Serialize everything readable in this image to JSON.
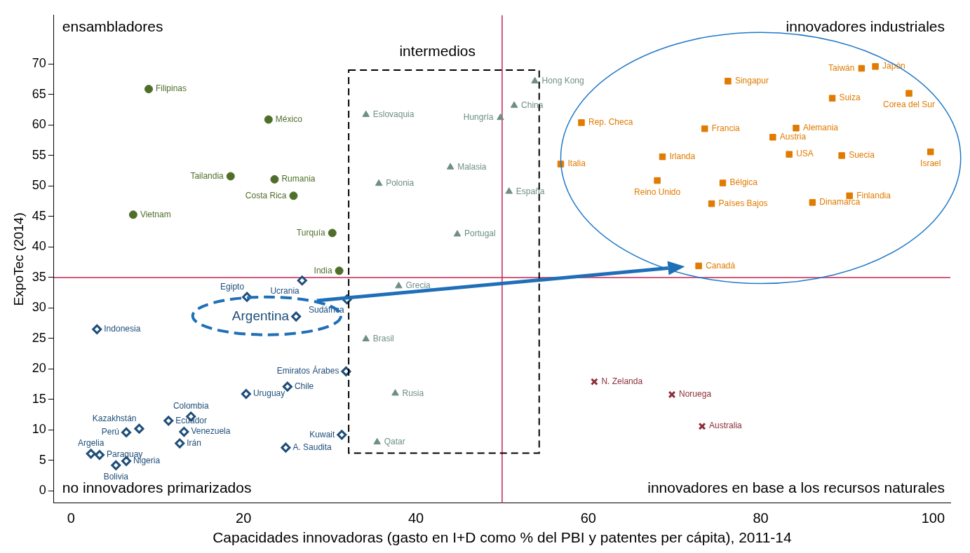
{
  "chart_data": {
    "type": "scatter",
    "xlabel": "Capacidades innovadoras (gasto en I+D como % del PBI y patentes per cápita), 2011-14",
    "ylabel": "ExpoTec (2014)",
    "xlim": [
      -2,
      102
    ],
    "xticks": [
      0,
      20,
      40,
      60,
      80,
      100
    ],
    "ylim": [
      -2,
      78
    ],
    "yticks": [
      0,
      5,
      10,
      15,
      20,
      25,
      30,
      35,
      40,
      45,
      50,
      55,
      60,
      65,
      70
    ],
    "grid": false,
    "legend": false,
    "tick_labels": "xy",
    "series": [
      {
        "color": "#4f6e2a",
        "marker": "circle",
        "x": [
          9.0,
          22.9,
          18.5,
          23.6,
          25.8,
          7.2,
          30.3,
          31.1
        ],
        "values": [
          65.9,
          60.9,
          51.6,
          51.1,
          48.4,
          45.3,
          42.3,
          36.1
        ],
        "value_labels": [
          "Filipinas",
          "México",
          "Tailandia",
          "Rumania",
          "Costa Rica",
          "Vietnam",
          "Turquía",
          "India"
        ]
      },
      {
        "color": "#1f4e79",
        "marker": "diamond",
        "x": [
          26.8,
          20.4,
          32.0,
          26.1,
          3.0,
          31.9,
          25.1,
          20.3,
          13.9,
          11.3,
          7.9,
          6.4,
          13.1,
          12.6,
          31.4,
          24.9,
          2.3,
          3.3,
          6.4,
          5.2
        ],
        "values": [
          34.5,
          31.8,
          31.4,
          28.6,
          26.5,
          19.6,
          17.1,
          15.9,
          12.2,
          11.5,
          10.2,
          9.6,
          9.7,
          7.8,
          9.2,
          7.1,
          6.1,
          5.9,
          4.9,
          4.2
        ],
        "value_labels": [
          "Ucrania",
          "Egipto",
          "Sudáfrica",
          "Argentina",
          "Indonesia",
          "Emiratos Árabes",
          "Chile",
          "Uruguay",
          "Colombia",
          "Ecuador",
          "Kazakhstán",
          "Perú",
          "Venezuela",
          "Irán",
          "Kuwait",
          "A. Saudita",
          "Argelia",
          "Paraguay",
          "Nigeria",
          "Bolivia"
        ]
      },
      {
        "color": "#6f8f86",
        "marker": "triangle",
        "x": [
          53.8,
          51.4,
          49.8,
          34.2,
          44.0,
          35.7,
          50.8,
          44.8,
          38.0,
          34.2,
          37.6,
          35.5
        ],
        "values": [
          67.2,
          63.2,
          61.2,
          61.7,
          53.1,
          50.4,
          49.1,
          42.1,
          33.6,
          24.9,
          16.0,
          8.0
        ],
        "value_labels": [
          "Hong Kong",
          "China",
          "Hungría",
          "Eslovaquia",
          "Malasia",
          "Polonia",
          "España",
          "Portugal",
          "Grecia",
          "Brasil",
          "Rusia",
          "Qatar"
        ]
      },
      {
        "color": "#e07b00",
        "marker": "square",
        "x": [
          91.7,
          93.3,
          76.2,
          88.3,
          97.2,
          59.2,
          73.5,
          84.1,
          81.4,
          68.6,
          83.3,
          89.4,
          99.7,
          56.8,
          68.0,
          75.6,
          90.3,
          74.3,
          86.0,
          72.8
        ],
        "values": [
          69.3,
          69.6,
          67.2,
          64.4,
          65.2,
          60.4,
          59.4,
          59.5,
          58.0,
          54.8,
          55.2,
          55.0,
          55.6,
          53.6,
          50.9,
          50.5,
          48.4,
          47.1,
          47.3,
          36.9
        ],
        "value_labels": [
          "Taiwán",
          "Japón",
          "Singapur",
          "Suiza",
          "Corea del Sur",
          "Rep. Checa",
          "Francia",
          "Alemania",
          "Austria",
          "Irlanda",
          "USA",
          "Suecia",
          "Israel",
          "Italia",
          "Reino Unido",
          "Bélgica",
          "Finlandia",
          "Países Bajos",
          "Dinamarca",
          "Canadá"
        ]
      },
      {
        "color": "#8b2e3a",
        "marker": "cross",
        "x": [
          60.7,
          69.7,
          73.2
        ],
        "values": [
          17.9,
          15.8,
          10.6
        ],
        "value_labels": [
          "N. Zelanda",
          "Noruega",
          "Australia"
        ]
      }
    ],
    "ref_lines": [
      {
        "axis": "x",
        "value": 50,
        "color": "#c8234f"
      },
      {
        "axis": "y",
        "value": 35,
        "color": "#c8234f"
      }
    ],
    "annotations": [
      "ensambladores",
      "intermedios",
      "innovadores industriales",
      "no innovadores primarizados",
      "innovadores en base a los recursos naturales"
    ]
  }
}
